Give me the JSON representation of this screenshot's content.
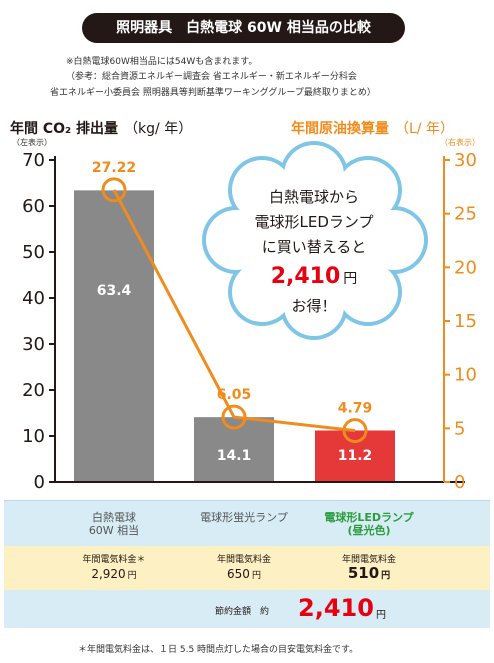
{
  "title": "照明器具　白熱電球 60W 相当品の比較",
  "notes": [
    "※白熱電球60W相当品には54Wも含まれます。",
    "（参考：総合資源エネルギー調査会 省エネルギー・新エネルギー分科会",
    "省エネルギー小委員会 照明器具等判断基準ワーキンググループ最終取りまとめ）"
  ],
  "left_axis": {
    "title": "年間 CO₂ 排出量",
    "unit": "（kg/ 年）",
    "sub": "（左表示）"
  },
  "right_axis": {
    "title": "年間原油換算量",
    "unit": "（L/ 年）",
    "sub": "（右表示）"
  },
  "callout": {
    "line1": "白熱電球から",
    "line2": "電球形LEDランプ",
    "line3": "に買い替えると",
    "amount": "2,410",
    "amount_unit": "円",
    "line5": "お得！"
  },
  "colors": {
    "bar_gray": "#898989",
    "bar_red": "#e53838",
    "line_orange": "#f08c1d",
    "cloud_border": "#7fc6e6",
    "green": "#2a9d3c",
    "savings_red": "#e60012"
  },
  "chart_data": {
    "type": "bar",
    "categories": [
      "白熱電球 60W 相当",
      "電球形蛍光ランプ",
      "電球形LEDランプ (昼光色)"
    ],
    "series": [
      {
        "values": [
          63.4,
          14.1,
          11.2
        ],
        "labels": [
          "63.4",
          "14.1",
          "11.2"
        ],
        "axis": "left",
        "type": "bar"
      },
      {
        "values": [
          27.22,
          6.05,
          4.79
        ],
        "labels": [
          "27.22",
          "6.05",
          "4.79"
        ],
        "axis": "right",
        "type": "line"
      }
    ],
    "ylabel_left": "年間 CO₂ 排出量（kg/ 年）",
    "ylabel_right": "年間原油換算量（L/ 年）",
    "ylim_left": [
      0,
      70
    ],
    "ylim_right": [
      0,
      30
    ],
    "yticks_left": [
      "0",
      "10",
      "20",
      "30",
      "40",
      "50",
      "60",
      "70"
    ],
    "yticks_right": [
      "0",
      "5",
      "10",
      "15",
      "20",
      "25",
      "30"
    ],
    "grid": false
  },
  "table": {
    "categories": [
      {
        "line1": "白熱電球",
        "line2": "60W 相当"
      },
      {
        "line1": "電球形蛍光ランプ",
        "line2": ""
      },
      {
        "line1": "電球形LEDランプ",
        "line2": "(昼光色)"
      }
    ],
    "fees": [
      {
        "label": "年間電気料金＊",
        "value": "2,920",
        "unit": "円"
      },
      {
        "label": "年間電気料金",
        "value": "650",
        "unit": "円"
      },
      {
        "label": "年間電気料金",
        "value": "510",
        "unit": "円"
      }
    ],
    "savings": {
      "label": "節約金額　約",
      "value": "2,410",
      "unit": "円"
    }
  },
  "footnote": "＊年間電気料金は、１日 5.5 時間点灯した場合の目安電気料金です。"
}
